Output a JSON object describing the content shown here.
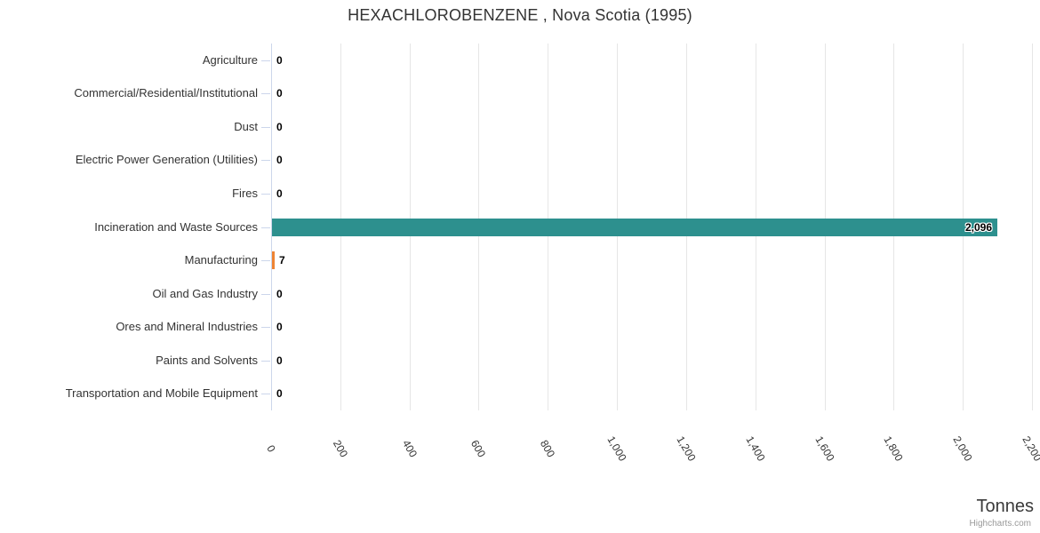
{
  "credits": "Highcharts.com",
  "chart_data": {
    "type": "bar",
    "orientation": "horizontal",
    "title": "HEXACHLOROBENZENE , Nova Scotia (1995)",
    "categories": [
      "Agriculture",
      "Commercial/Residential/Institutional",
      "Dust",
      "Electric Power Generation (Utilities)",
      "Fires",
      "Incineration and Waste Sources",
      "Manufacturing",
      "Oil and Gas Industry",
      "Ores and Mineral Industries",
      "Paints and Solvents",
      "Transportation and Mobile Equipment"
    ],
    "values": [
      0,
      0,
      0,
      0,
      0,
      2096,
      7,
      0,
      0,
      0,
      0
    ],
    "value_labels": [
      "0",
      "0",
      "0",
      "0",
      "0",
      "2,096",
      "7",
      "0",
      "0",
      "0",
      "0"
    ],
    "bar_colors": [
      "#2d908e",
      "#2d908e",
      "#2d908e",
      "#2d908e",
      "#2d908e",
      "#2d908e",
      "#ee8434",
      "#2d908e",
      "#2d908e",
      "#2d908e",
      "#2d908e"
    ],
    "xlabel": "Tonnes",
    "xlim": [
      0,
      2200
    ],
    "tick_interval": 200,
    "x_tick_labels": [
      "0",
      "200",
      "400",
      "600",
      "800",
      "1,000",
      "1,200",
      "1,400",
      "1,600",
      "1,800",
      "2,000",
      "2,200"
    ],
    "grid": true,
    "legend": false,
    "colors": {
      "title_text": "#333333",
      "category_text": "#333333",
      "value_text": "#000000",
      "axis_line": "#ccd6eb",
      "gridline": "#e6e6e6",
      "series_teal": "#2d908e",
      "series_orange": "#ee8434",
      "credits_text": "#999999"
    }
  }
}
